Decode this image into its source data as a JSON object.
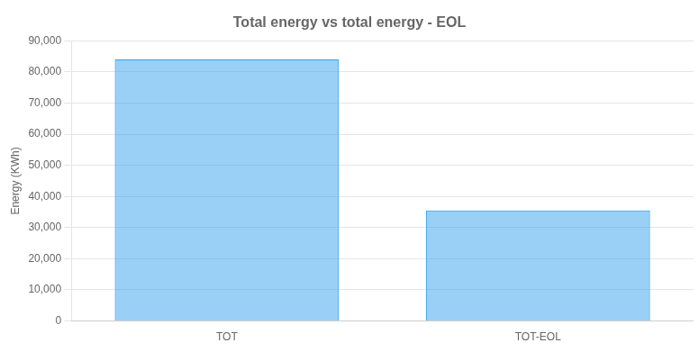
{
  "chart_data": {
    "type": "bar",
    "title": "Total energy vs total energy - EOL",
    "categories": [
      "TOT",
      "TOT-EOL"
    ],
    "values": [
      84000,
      35500
    ],
    "ylabel": "Energy (KWh)",
    "ylim": [
      0,
      90000
    ],
    "yticks": [
      0,
      {
        "value": 10000,
        "label": "10,000"
      },
      {
        "value": 20000,
        "label": "20,000"
      },
      {
        "value": 30000,
        "label": "30,000"
      },
      {
        "value": 40000,
        "label": "40,000"
      },
      {
        "value": 50000,
        "label": "50,000"
      },
      {
        "value": 60000,
        "label": "60,000"
      },
      {
        "value": 70000,
        "label": "70,000"
      },
      {
        "value": 80000,
        "label": "80,000"
      },
      {
        "value": 90000,
        "label": "90,000"
      }
    ],
    "grid": true
  }
}
